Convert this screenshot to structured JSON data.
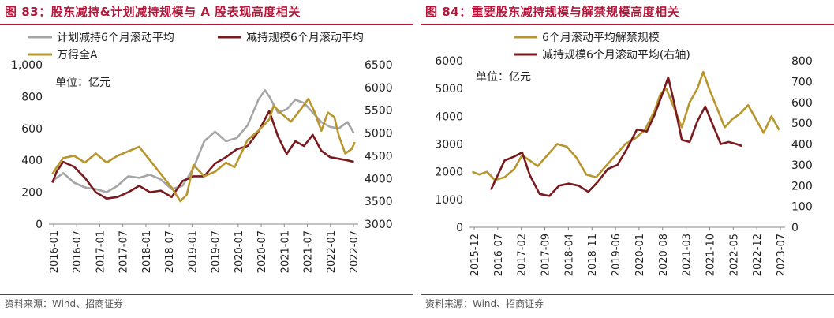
{
  "chart_data": [
    {
      "type": "line",
      "title": "图 83：股东减持&计划减持规模与 A 股表现高度相关",
      "unit_label": "单位：亿元",
      "source": "资料来源：Wind、招商证券",
      "left_axis": {
        "ylim": [
          0,
          1000
        ],
        "ticks": [
          "0",
          "200",
          "400",
          "600",
          "800",
          "1,000"
        ]
      },
      "right_axis": {
        "ylim": [
          3000,
          6500
        ],
        "ticks": [
          "3000",
          "3500",
          "4000",
          "4500",
          "5000",
          "5500",
          "6000",
          "6500"
        ]
      },
      "x_ticks": [
        "2016-01",
        "2016-07",
        "2017-01",
        "2017-07",
        "2018-01",
        "2018-07",
        "2019-01",
        "2019-07",
        "2020-01",
        "2020-07",
        "2021-01",
        "2021-07",
        "2022-01",
        "2022-07"
      ],
      "legend_position": "top",
      "series": [
        {
          "name": "计划减持6个月滚动平均",
          "color": "#a6a6a6",
          "axis": "left",
          "x": [
            2016.0,
            2016.25,
            2016.5,
            2016.75,
            2017.0,
            2017.25,
            2017.5,
            2017.75,
            2018.0,
            2018.25,
            2018.5,
            2018.75,
            2019.0,
            2019.25,
            2019.5,
            2019.75,
            2020.0,
            2020.25,
            2020.5,
            2020.75,
            2020.9,
            2021.0,
            2021.2,
            2021.4,
            2021.6,
            2021.8,
            2022.0,
            2022.2,
            2022.4,
            2022.6,
            2022.8,
            2022.95
          ],
          "y": [
            270,
            320,
            260,
            230,
            220,
            200,
            240,
            300,
            290,
            310,
            280,
            220,
            240,
            350,
            520,
            580,
            520,
            540,
            620,
            780,
            840,
            800,
            700,
            720,
            780,
            760,
            700,
            640,
            610,
            600,
            640,
            570
          ]
        },
        {
          "name": "减持规模6个月滚动平均",
          "color": "#7a1a1e",
          "axis": "left",
          "x": [
            2016.0,
            2016.1,
            2016.25,
            2016.5,
            2016.75,
            2017.0,
            2017.25,
            2017.5,
            2017.75,
            2018.0,
            2018.25,
            2018.5,
            2018.75,
            2019.0,
            2019.25,
            2019.5,
            2019.75,
            2020.0,
            2020.25,
            2020.5,
            2020.75,
            2021.0,
            2021.2,
            2021.4,
            2021.6,
            2021.8,
            2022.0,
            2022.2,
            2022.4,
            2022.6,
            2022.8,
            2022.95
          ],
          "y": [
            260,
            330,
            390,
            360,
            290,
            200,
            160,
            170,
            200,
            240,
            200,
            210,
            170,
            270,
            300,
            300,
            380,
            420,
            470,
            490,
            580,
            710,
            550,
            440,
            520,
            490,
            560,
            460,
            420,
            410,
            400,
            390
          ]
        },
        {
          "name": "万得全A",
          "color": "#b8962e",
          "axis": "right",
          "x": [
            2016.0,
            2016.1,
            2016.25,
            2016.5,
            2016.75,
            2017.0,
            2017.25,
            2017.5,
            2017.75,
            2018.0,
            2018.25,
            2018.5,
            2018.75,
            2018.95,
            2019.1,
            2019.25,
            2019.5,
            2019.75,
            2020.0,
            2020.2,
            2020.5,
            2020.75,
            2021.0,
            2021.1,
            2021.25,
            2021.5,
            2021.75,
            2021.9,
            2022.05,
            2022.2,
            2022.35,
            2022.5,
            2022.6,
            2022.75,
            2022.9,
            2022.97
          ],
          "y": [
            4100,
            4250,
            4450,
            4500,
            4350,
            4550,
            4350,
            4500,
            4600,
            4700,
            4400,
            4100,
            3800,
            3500,
            3650,
            4300,
            4050,
            4150,
            4350,
            4250,
            4850,
            5050,
            5300,
            5600,
            5450,
            5250,
            5550,
            5750,
            5450,
            5050,
            5450,
            5350,
            4950,
            4550,
            4650,
            4800
          ]
        }
      ]
    },
    {
      "type": "line",
      "title": "图 84：重要股东减持规模与解禁规模高度相关",
      "unit_label": "单位：亿元",
      "source": "资料来源：Wind、招商证券",
      "left_axis": {
        "ylim": [
          0,
          6000
        ],
        "ticks": [
          "0",
          "1000",
          "2000",
          "3000",
          "4000",
          "5000",
          "6000"
        ]
      },
      "right_axis": {
        "ylim": [
          0,
          800
        ],
        "ticks": [
          "0",
          "100",
          "200",
          "300",
          "400",
          "500",
          "600",
          "700",
          "800"
        ]
      },
      "x_ticks": [
        "2015-12",
        "2016-07",
        "2017-02",
        "2017-09",
        "2018-04",
        "2018-11",
        "2019-06",
        "2020-01",
        "2020-08",
        "2021-03",
        "2021-10",
        "2022-05",
        "2022-12",
        "2023-07"
      ],
      "legend_position": "top",
      "series": [
        {
          "name": "6个月滚动平均解禁规模",
          "color": "#b8962e",
          "axis": "left",
          "x": [
            2015.92,
            2016.1,
            2016.3,
            2016.5,
            2016.75,
            2017.0,
            2017.2,
            2017.4,
            2017.6,
            2017.85,
            2018.1,
            2018.35,
            2018.6,
            2018.85,
            2019.1,
            2019.35,
            2019.6,
            2019.85,
            2020.1,
            2020.35,
            2020.6,
            2020.75,
            2020.9,
            2021.1,
            2021.3,
            2021.5,
            2021.7,
            2021.85,
            2022.0,
            2022.2,
            2022.4,
            2022.6,
            2022.8,
            2023.0,
            2023.2,
            2023.4,
            2023.6,
            2023.8
          ],
          "y": [
            2000,
            1900,
            2000,
            1700,
            1800,
            2100,
            2600,
            2400,
            2200,
            2600,
            3000,
            2900,
            2500,
            1900,
            1800,
            2200,
            2600,
            3000,
            3200,
            3500,
            4200,
            4800,
            5000,
            4300,
            3600,
            4500,
            5000,
            5600,
            5000,
            4300,
            3600,
            3900,
            4100,
            4400,
            3900,
            3400,
            4000,
            3500
          ]
        },
        {
          "name": "减持规模6个月滚动平均(右轴)",
          "color": "#7a1a1e",
          "axis": "right",
          "x": [
            2016.4,
            2016.55,
            2016.75,
            2017.0,
            2017.2,
            2017.4,
            2017.65,
            2017.9,
            2018.15,
            2018.4,
            2018.65,
            2018.9,
            2019.15,
            2019.4,
            2019.65,
            2019.9,
            2020.15,
            2020.4,
            2020.6,
            2020.8,
            2020.95,
            2021.1,
            2021.3,
            2021.5,
            2021.7,
            2021.9,
            2022.1,
            2022.3,
            2022.5,
            2022.7,
            2022.85
          ],
          "y": [
            180,
            240,
            320,
            340,
            360,
            250,
            160,
            150,
            200,
            210,
            200,
            170,
            220,
            280,
            300,
            380,
            470,
            460,
            540,
            640,
            720,
            600,
            420,
            410,
            510,
            580,
            490,
            400,
            410,
            400,
            390
          ]
        }
      ]
    }
  ]
}
